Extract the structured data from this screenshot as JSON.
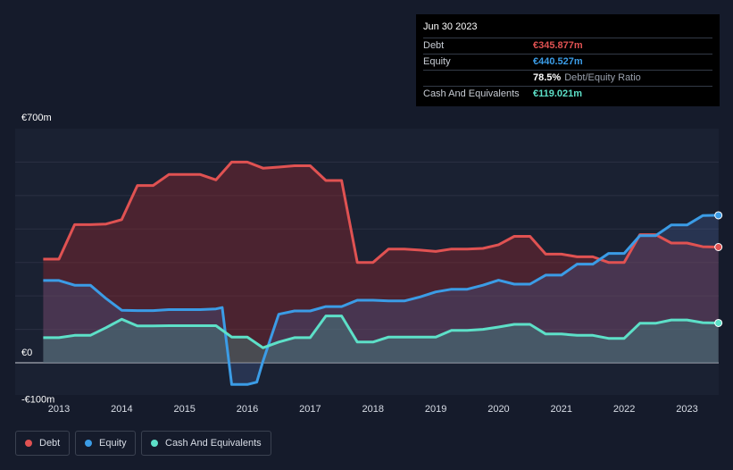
{
  "tooltip": {
    "date": "Jun 30 2023",
    "rows": [
      {
        "label": "Debt",
        "value": "€345.877m",
        "color": "#e05252"
      },
      {
        "label": "Equity",
        "value": "€440.527m",
        "color": "#3b9ce6"
      },
      {
        "label": "",
        "value": "78.5%",
        "suffix": "Debt/Equity Ratio",
        "color": "#ffffff"
      },
      {
        "label": "Cash And Equivalents",
        "value": "€119.021m",
        "color": "#5de0c8"
      }
    ]
  },
  "legend": [
    {
      "label": "Debt",
      "color": "#e05252"
    },
    {
      "label": "Equity",
      "color": "#3b9ce6"
    },
    {
      "label": "Cash And Equivalents",
      "color": "#5de0c8"
    }
  ],
  "chart_data": {
    "type": "area",
    "title": "",
    "xlabel": "",
    "ylabel": "",
    "ylim": [
      -100,
      700
    ],
    "y_ticks": [
      {
        "value": 700,
        "label": "€700m"
      },
      {
        "value": 0,
        "label": "€0"
      },
      {
        "value": -100,
        "label": "-€100m"
      }
    ],
    "x_ticks": [
      "2013",
      "2014",
      "2015",
      "2016",
      "2017",
      "2018",
      "2019",
      "2020",
      "2021",
      "2022",
      "2023"
    ],
    "grid": true,
    "series": [
      {
        "name": "Debt",
        "color": "#e05252",
        "points": [
          [
            2012.75,
            310
          ],
          [
            2013.0,
            310
          ],
          [
            2013.25,
            413
          ],
          [
            2013.5,
            413
          ],
          [
            2013.75,
            415
          ],
          [
            2014.0,
            428
          ],
          [
            2014.25,
            530
          ],
          [
            2014.5,
            530
          ],
          [
            2014.75,
            563
          ],
          [
            2015.0,
            563
          ],
          [
            2015.25,
            563
          ],
          [
            2015.5,
            547
          ],
          [
            2015.75,
            600
          ],
          [
            2016.0,
            600
          ],
          [
            2016.25,
            582
          ],
          [
            2016.5,
            585
          ],
          [
            2016.75,
            589
          ],
          [
            2017.0,
            589
          ],
          [
            2017.25,
            545
          ],
          [
            2017.5,
            545
          ],
          [
            2017.75,
            300
          ],
          [
            2018.0,
            300
          ],
          [
            2018.25,
            340
          ],
          [
            2018.5,
            340
          ],
          [
            2018.75,
            337
          ],
          [
            2019.0,
            333
          ],
          [
            2019.25,
            340
          ],
          [
            2019.5,
            340
          ],
          [
            2019.75,
            342
          ],
          [
            2020.0,
            353
          ],
          [
            2020.25,
            378
          ],
          [
            2020.5,
            378
          ],
          [
            2020.75,
            325
          ],
          [
            2021.0,
            325
          ],
          [
            2021.25,
            317
          ],
          [
            2021.5,
            317
          ],
          [
            2021.75,
            300
          ],
          [
            2022.0,
            300
          ],
          [
            2022.25,
            383
          ],
          [
            2022.5,
            383
          ],
          [
            2022.75,
            358
          ],
          [
            2023.0,
            358
          ],
          [
            2023.25,
            347
          ],
          [
            2023.5,
            346
          ]
        ]
      },
      {
        "name": "Equity",
        "color": "#3b9ce6",
        "points": [
          [
            2012.75,
            246
          ],
          [
            2013.0,
            246
          ],
          [
            2013.25,
            232
          ],
          [
            2013.5,
            232
          ],
          [
            2013.75,
            192
          ],
          [
            2014.0,
            157
          ],
          [
            2014.25,
            156
          ],
          [
            2014.5,
            156
          ],
          [
            2014.75,
            159
          ],
          [
            2015.0,
            159
          ],
          [
            2015.25,
            159
          ],
          [
            2015.5,
            161
          ],
          [
            2015.6,
            165
          ],
          [
            2015.75,
            -65
          ],
          [
            2016.0,
            -65
          ],
          [
            2016.15,
            -58
          ],
          [
            2016.25,
            5
          ],
          [
            2016.5,
            145
          ],
          [
            2016.75,
            155
          ],
          [
            2017.0,
            155
          ],
          [
            2017.25,
            168
          ],
          [
            2017.5,
            168
          ],
          [
            2017.75,
            187
          ],
          [
            2018.0,
            187
          ],
          [
            2018.25,
            185
          ],
          [
            2018.5,
            185
          ],
          [
            2018.75,
            197
          ],
          [
            2019.0,
            212
          ],
          [
            2019.25,
            220
          ],
          [
            2019.5,
            220
          ],
          [
            2019.75,
            232
          ],
          [
            2020.0,
            247
          ],
          [
            2020.25,
            235
          ],
          [
            2020.5,
            235
          ],
          [
            2020.75,
            262
          ],
          [
            2021.0,
            262
          ],
          [
            2021.25,
            295
          ],
          [
            2021.5,
            295
          ],
          [
            2021.75,
            327
          ],
          [
            2022.0,
            327
          ],
          [
            2022.25,
            380
          ],
          [
            2022.5,
            380
          ],
          [
            2022.75,
            412
          ],
          [
            2023.0,
            412
          ],
          [
            2023.25,
            440
          ],
          [
            2023.5,
            441
          ]
        ]
      },
      {
        "name": "Cash And Equivalents",
        "color": "#5de0c8",
        "points": [
          [
            2012.75,
            75
          ],
          [
            2013.0,
            75
          ],
          [
            2013.25,
            82
          ],
          [
            2013.5,
            82
          ],
          [
            2013.75,
            105
          ],
          [
            2014.0,
            130
          ],
          [
            2014.25,
            110
          ],
          [
            2014.5,
            110
          ],
          [
            2014.75,
            111
          ],
          [
            2015.0,
            111
          ],
          [
            2015.25,
            111
          ],
          [
            2015.5,
            111
          ],
          [
            2015.75,
            77
          ],
          [
            2016.0,
            77
          ],
          [
            2016.25,
            45
          ],
          [
            2016.5,
            62
          ],
          [
            2016.75,
            75
          ],
          [
            2017.0,
            75
          ],
          [
            2017.25,
            140
          ],
          [
            2017.5,
            140
          ],
          [
            2017.75,
            62
          ],
          [
            2018.0,
            62
          ],
          [
            2018.25,
            77
          ],
          [
            2018.5,
            77
          ],
          [
            2018.75,
            77
          ],
          [
            2019.0,
            77
          ],
          [
            2019.25,
            97
          ],
          [
            2019.5,
            97
          ],
          [
            2019.75,
            100
          ],
          [
            2020.0,
            107
          ],
          [
            2020.25,
            115
          ],
          [
            2020.5,
            115
          ],
          [
            2020.75,
            86
          ],
          [
            2021.0,
            86
          ],
          [
            2021.25,
            82
          ],
          [
            2021.5,
            82
          ],
          [
            2021.75,
            73
          ],
          [
            2022.0,
            73
          ],
          [
            2022.25,
            118
          ],
          [
            2022.5,
            118
          ],
          [
            2022.75,
            128
          ],
          [
            2023.0,
            128
          ],
          [
            2023.25,
            120
          ],
          [
            2023.5,
            119
          ]
        ]
      }
    ]
  }
}
